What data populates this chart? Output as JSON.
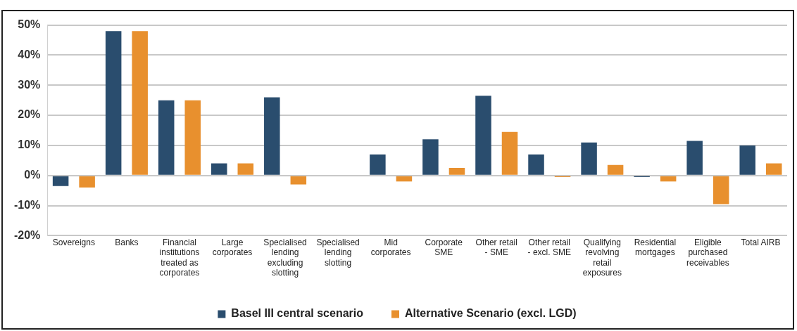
{
  "chart_data": {
    "type": "bar",
    "categories": [
      "Sovereigns",
      "Banks",
      "Financial institutions treated as corporates",
      "Large corporates",
      "Specialised lending excluding slotting",
      "Specialised lending slotting",
      "Mid corporates",
      "Corporate SME",
      "Other retail - SME",
      "Other retail - excl. SME",
      "Qualifying revolving retail exposures",
      "Residential mortgages",
      "Eligible purchased receivables",
      "Total AIRB"
    ],
    "series": [
      {
        "name": "Basel III central scenario",
        "color": "#2a4d6e",
        "values": [
          -3.5,
          48,
          25,
          4,
          26,
          null,
          7,
          12,
          26.5,
          7,
          11,
          -0.5,
          11.5,
          10
        ]
      },
      {
        "name": "Alternative Scenario (excl. LGD)",
        "color": "#e8902e",
        "values": [
          -4,
          48,
          25,
          4,
          -3,
          null,
          -2,
          2.5,
          14.5,
          -0.5,
          3.5,
          -2,
          -9.5,
          4
        ]
      }
    ],
    "ylim": [
      -20,
      50
    ],
    "yticks": [
      {
        "value": -20,
        "label": "-20%"
      },
      {
        "value": -10,
        "label": "-10%"
      },
      {
        "value": 0,
        "label": "0%"
      },
      {
        "value": 10,
        "label": "10%"
      },
      {
        "value": 20,
        "label": "20%"
      },
      {
        "value": 30,
        "label": "30%"
      },
      {
        "value": 40,
        "label": "40%"
      },
      {
        "value": 50,
        "label": "50%"
      }
    ],
    "grid": "y",
    "legend": "bottom"
  }
}
